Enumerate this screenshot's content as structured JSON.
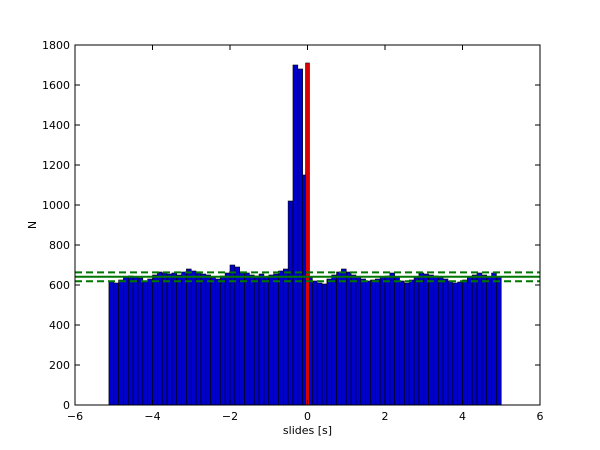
{
  "chart_data": {
    "type": "bar",
    "title": "",
    "xlabel": "slides [s]",
    "ylabel": "N",
    "xlim": [
      -6,
      6
    ],
    "ylim": [
      0,
      1800
    ],
    "xticks": [
      -6,
      -4,
      -2,
      0,
      2,
      4,
      6
    ],
    "xtick_labels": [
      "−6",
      "−4",
      "−2",
      "0",
      "2",
      "4",
      "6"
    ],
    "yticks": [
      0,
      200,
      400,
      600,
      800,
      1000,
      1200,
      1400,
      1600,
      1800
    ],
    "ytick_labels": [
      "0",
      "200",
      "400",
      "600",
      "800",
      "1000",
      "1200",
      "1400",
      "1600",
      "1800"
    ],
    "grid": false,
    "legend": "none",
    "colors": {
      "bars": "#0000cc",
      "bar_edge": "#000000",
      "zero_marker": "#dd0000",
      "mean_line": "#007700",
      "sigma_lines": "#007700"
    },
    "bin_width": 0.125,
    "x": [
      -5.0625,
      -4.9375,
      -4.8125,
      -4.6875,
      -4.5625,
      -4.4375,
      -4.3125,
      -4.1875,
      -4.0625,
      -3.9375,
      -3.8125,
      -3.6875,
      -3.5625,
      -3.4375,
      -3.3125,
      -3.1875,
      -3.0625,
      -2.9375,
      -2.8125,
      -2.6875,
      -2.5625,
      -2.4375,
      -2.3125,
      -2.1875,
      -2.0625,
      -1.9375,
      -1.8125,
      -1.6875,
      -1.5625,
      -1.4375,
      -1.3125,
      -1.1875,
      -1.0625,
      -0.9375,
      -0.8125,
      -0.6875,
      -0.5625,
      -0.4375,
      -0.3125,
      -0.1875,
      -0.0625,
      0.0625,
      0.1875,
      0.3125,
      0.4375,
      0.5625,
      0.6875,
      0.8125,
      0.9375,
      1.0625,
      1.1875,
      1.3125,
      1.4375,
      1.5625,
      1.6875,
      1.8125,
      1.9375,
      2.0625,
      2.1875,
      2.3125,
      2.4375,
      2.5625,
      2.6875,
      2.8125,
      2.9375,
      3.0625,
      3.1875,
      3.3125,
      3.4375,
      3.5625,
      3.6875,
      3.8125,
      3.9375,
      4.0625,
      4.1875,
      4.3125,
      4.4375,
      4.5625,
      4.6875,
      4.8125,
      4.9375
    ],
    "values": [
      620,
      610,
      625,
      640,
      645,
      640,
      635,
      615,
      630,
      650,
      665,
      660,
      655,
      660,
      650,
      665,
      680,
      670,
      660,
      655,
      650,
      640,
      630,
      645,
      660,
      700,
      690,
      665,
      660,
      650,
      645,
      655,
      640,
      650,
      655,
      670,
      680,
      1020,
      1700,
      1680,
      1150,
      640,
      620,
      610,
      605,
      630,
      650,
      665,
      680,
      665,
      650,
      640,
      630,
      620,
      625,
      630,
      640,
      645,
      660,
      640,
      620,
      610,
      625,
      640,
      660,
      655,
      650,
      645,
      640,
      630,
      620,
      610,
      615,
      625,
      640,
      650,
      660,
      650,
      640,
      660,
      640
    ],
    "zero_marker": {
      "x": 0,
      "value": 1710
    },
    "mean": 641,
    "sigma_band": [
      619,
      663
    ]
  }
}
